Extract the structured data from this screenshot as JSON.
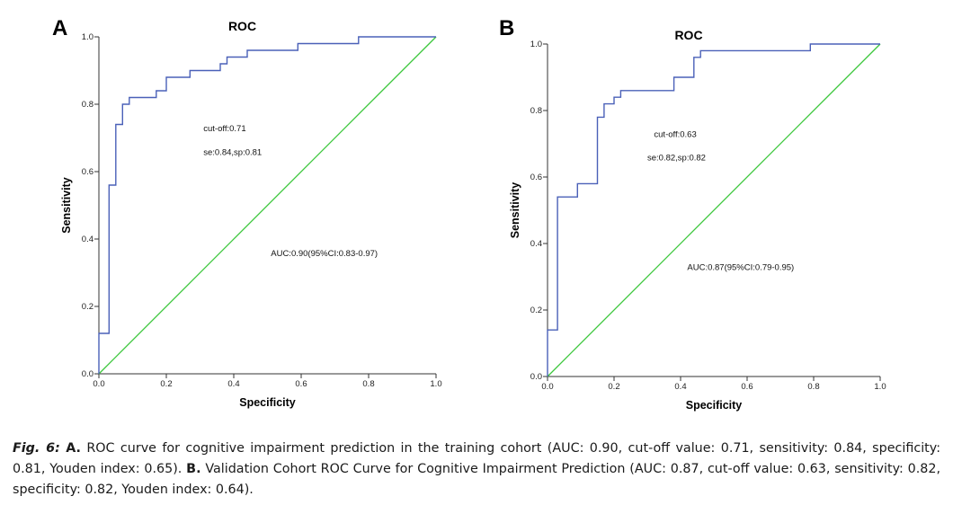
{
  "colors": {
    "roc": "#4a60b8",
    "reference": "#3cc73c",
    "axis": "#333333"
  },
  "chart_data": [
    {
      "panel": "A",
      "type": "line",
      "title": "ROC",
      "xlabel": "Specificity",
      "ylabel": "Sensitivity",
      "xlim": [
        0,
        1
      ],
      "ylim": [
        0,
        1
      ],
      "xticks": [
        "0.0",
        "0.2",
        "0.4",
        "0.6",
        "0.8",
        "1.0"
      ],
      "yticks": [
        "0.0",
        "0.2",
        "0.4",
        "0.6",
        "0.8",
        "1.0"
      ],
      "grid": false,
      "series": [
        {
          "name": "ROC curve",
          "x": [
            0,
            0,
            0.03,
            0.03,
            0.05,
            0.05,
            0.07,
            0.07,
            0.09,
            0.09,
            0.12,
            0.12,
            0.17,
            0.17,
            0.2,
            0.2,
            0.27,
            0.27,
            0.36,
            0.36,
            0.38,
            0.38,
            0.44,
            0.44,
            0.59,
            0.59,
            0.77,
            0.77,
            1
          ],
          "y": [
            0,
            0.12,
            0.12,
            0.56,
            0.56,
            0.74,
            0.74,
            0.8,
            0.8,
            0.82,
            0.82,
            0.82,
            0.82,
            0.84,
            0.84,
            0.88,
            0.88,
            0.9,
            0.9,
            0.92,
            0.92,
            0.94,
            0.94,
            0.96,
            0.96,
            0.98,
            0.98,
            1.0,
            1.0
          ]
        },
        {
          "name": "Reference line",
          "x": [
            0,
            1
          ],
          "y": [
            0,
            1
          ]
        }
      ],
      "annotations": [
        {
          "text": "cut-off:0.71",
          "x": 0.31,
          "y": 0.72
        },
        {
          "text": "se:0.84,sp:0.81",
          "x": 0.31,
          "y": 0.65
        },
        {
          "text": "AUC:0.90(95%CI:0.83-0.97)",
          "x": 0.51,
          "y": 0.35
        }
      ]
    },
    {
      "panel": "B",
      "type": "line",
      "title": "ROC",
      "xlabel": "Specificity",
      "ylabel": "Sensitivity",
      "xlim": [
        0,
        1
      ],
      "ylim": [
        0,
        1
      ],
      "xticks": [
        "0.0",
        "0.2",
        "0.4",
        "0.6",
        "0.8",
        "1.0"
      ],
      "yticks": [
        "0.0",
        "0.2",
        "0.4",
        "0.6",
        "0.8",
        "1.0"
      ],
      "grid": false,
      "series": [
        {
          "name": "ROC curve",
          "x": [
            0,
            0,
            0.03,
            0.03,
            0.09,
            0.09,
            0.15,
            0.15,
            0.17,
            0.17,
            0.2,
            0.2,
            0.22,
            0.22,
            0.38,
            0.38,
            0.44,
            0.44,
            0.46,
            0.46,
            0.79,
            0.79,
            1
          ],
          "y": [
            0,
            0.14,
            0.14,
            0.54,
            0.54,
            0.58,
            0.58,
            0.78,
            0.78,
            0.82,
            0.82,
            0.84,
            0.84,
            0.86,
            0.86,
            0.9,
            0.9,
            0.96,
            0.96,
            0.98,
            0.98,
            1.0,
            1.0
          ]
        },
        {
          "name": "Reference line",
          "x": [
            0,
            1
          ],
          "y": [
            0,
            1
          ]
        }
      ],
      "annotations": [
        {
          "text": "cut-off:0.63",
          "x": 0.32,
          "y": 0.72
        },
        {
          "text": "se:0.82,sp:0.82",
          "x": 0.3,
          "y": 0.65
        },
        {
          "text": "AUC:0.87(95%CI:0.79-0.95)",
          "x": 0.42,
          "y": 0.32
        }
      ]
    }
  ],
  "caption": {
    "fig_label": "Fig. 6:",
    "a_label": "A.",
    "a_text": "ROC curve for cognitive impairment prediction in the training cohort (AUC: 0.90, cut-off value: 0.71, sensitivity: 0.84, specificity: 0.81, Youden index: 0.65).",
    "b_label": "B.",
    "b_text": "Validation Cohort ROC Curve for Cognitive Impairment Prediction (AUC: 0.87, cut-off value: 0.63, sensitivity: 0.82, specificity: 0.82, Youden index: 0.64)."
  }
}
